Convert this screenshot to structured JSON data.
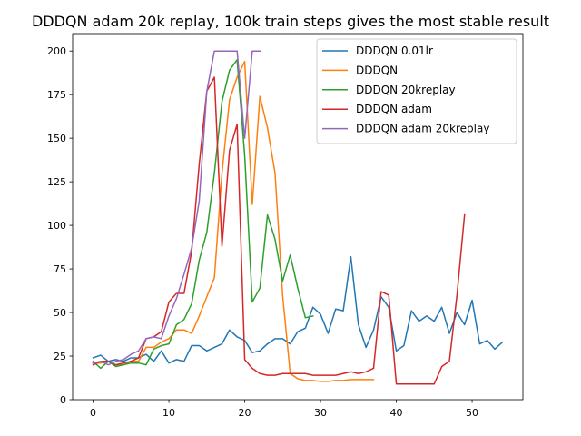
{
  "chart_data": {
    "type": "line",
    "title": "DDDQN adam 20k replay, 100k train steps gives the most stable result",
    "xlabel": "",
    "ylabel": "",
    "xlim": [
      -2.7,
      56.7
    ],
    "ylim": [
      0,
      210
    ],
    "x_ticks": [
      0,
      10,
      20,
      30,
      40,
      50
    ],
    "y_ticks": [
      0,
      25,
      50,
      75,
      100,
      125,
      150,
      175,
      200
    ],
    "grid": false,
    "legend_position": "upper right",
    "series": [
      {
        "name": "DDDQN 0.01lr",
        "color": "#1f77b4",
        "values": [
          24,
          25.5,
          22,
          23,
          22,
          24,
          24,
          26,
          22,
          28,
          21,
          23,
          22,
          31,
          31,
          28,
          30,
          32,
          40,
          36,
          34,
          27,
          28,
          32,
          35,
          35,
          32,
          39,
          41,
          53,
          49,
          38,
          52,
          51,
          82,
          43,
          30,
          40,
          59,
          53,
          28,
          31,
          51,
          45,
          48,
          45,
          53,
          38,
          50,
          43,
          57,
          32,
          34,
          29,
          33
        ]
      },
      {
        "name": "DDDQN",
        "color": "#ff7f0e",
        "values": [
          21,
          21,
          22,
          20,
          20,
          22,
          22,
          30,
          30,
          33,
          35,
          40,
          40,
          38,
          48,
          59,
          70,
          130,
          172,
          185,
          194,
          112,
          174,
          156,
          130,
          60,
          15,
          12,
          11,
          11,
          10.5,
          10.5,
          11,
          11,
          11.5,
          11.5,
          11.5,
          11.5
        ]
      },
      {
        "name": "DDDQN 20kreplay",
        "color": "#2ca02c",
        "values": [
          22,
          18,
          22,
          19,
          20,
          21,
          21,
          20,
          29,
          31,
          32,
          43,
          46,
          55,
          80,
          96,
          130,
          171,
          189,
          195,
          140,
          56,
          64,
          106,
          92,
          68,
          83,
          64,
          47,
          48
        ]
      },
      {
        "name": "DDDQN adam",
        "color": "#d62728",
        "values": [
          20,
          22,
          22,
          20,
          21,
          22,
          24,
          35,
          36,
          39,
          56,
          61,
          61,
          85,
          135,
          177,
          185,
          88,
          143,
          158,
          23,
          18,
          15,
          14,
          14,
          15,
          15,
          15,
          15,
          14,
          14,
          14,
          14,
          15,
          16,
          15,
          16,
          18,
          62,
          60,
          9,
          9,
          9,
          9,
          9,
          9,
          19,
          22,
          60,
          106
        ]
      },
      {
        "name": "DDDQN adam 20kreplay",
        "color": "#9467bd",
        "values": [
          21,
          22,
          20,
          22,
          23,
          26,
          28,
          35,
          36,
          35,
          48,
          58,
          72,
          87,
          114,
          177,
          200,
          200,
          200,
          200,
          150,
          200,
          200
        ]
      }
    ]
  }
}
